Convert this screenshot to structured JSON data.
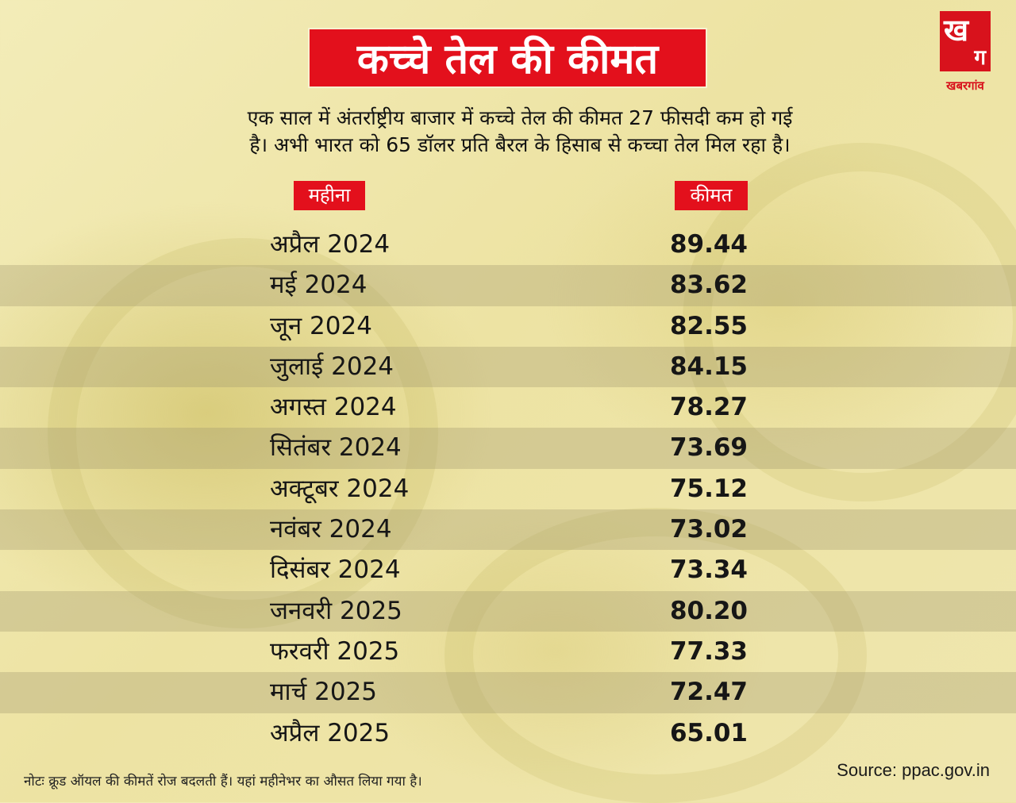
{
  "title": "कच्चे तेल की कीमत",
  "subtitle": {
    "line1": "एक साल में अंतर्राष्ट्रीय बाजार में कच्चे तेल की कीमत 27 फीसदी कम हो गई",
    "line2": "है। अभी भारत को 65 डॉलर प्रति बैरल के हिसाब से कच्चा तेल मिल रहा है।"
  },
  "logo": {
    "glyph1": "ख",
    "glyph2": "ग",
    "text": "खबरगांव",
    "color": "#d8121c"
  },
  "table": {
    "headers": {
      "month": "महीना",
      "price": "कीमत"
    },
    "rows": [
      {
        "month": "अप्रैल 2024",
        "price": "89.44"
      },
      {
        "month": "मई 2024",
        "price": "83.62"
      },
      {
        "month": "जून 2024",
        "price": "82.55"
      },
      {
        "month": "जुलाई 2024",
        "price": "84.15"
      },
      {
        "month": "अगस्त 2024",
        "price": "78.27"
      },
      {
        "month": "सितंबर 2024",
        "price": "73.69"
      },
      {
        "month": "अक्टूबर 2024",
        "price": "75.12"
      },
      {
        "month": "नवंबर 2024",
        "price": "73.02"
      },
      {
        "month": "दिसंबर 2024",
        "price": "73.34"
      },
      {
        "month": "जनवरी 2025",
        "price": "80.20"
      },
      {
        "month": "फरवरी 2025",
        "price": "77.33"
      },
      {
        "month": "मार्च 2025",
        "price": "72.47"
      },
      {
        "month": "अप्रैल 2025",
        "price": "65.01"
      }
    ]
  },
  "note": "नोटः क्रूड ऑयल की कीमतें रोज बदलती हैं। यहां महीनेभर का औसत लिया गया है।",
  "source": "Source: ppac.gov.in",
  "colors": {
    "accent": "#e3101c",
    "background": "#efe6ae"
  }
}
